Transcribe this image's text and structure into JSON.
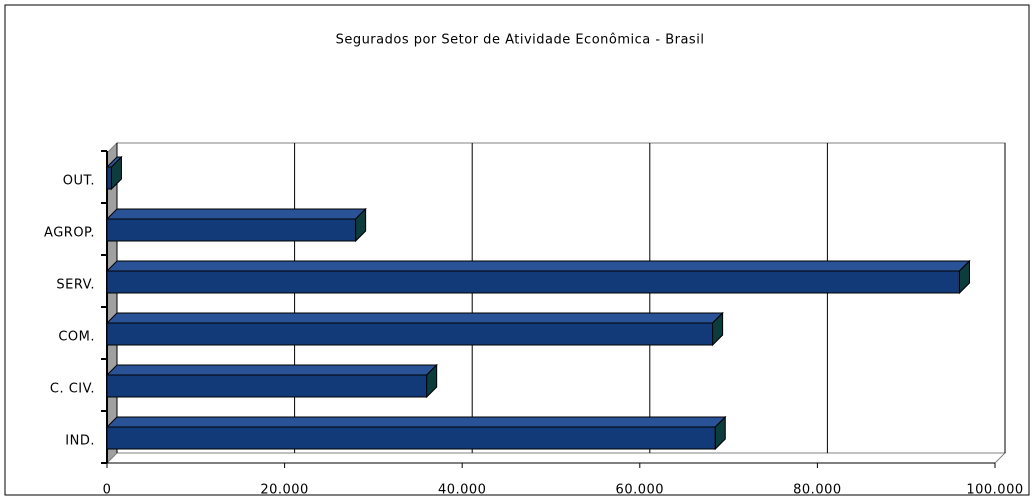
{
  "chart_data": {
    "type": "bar",
    "orientation": "horizontal",
    "title": "Segurados por Setor de Atividade Econômica - Brasil",
    "categories": [
      "IND.",
      "C. CIV.",
      "COM.",
      "SERV.",
      "AGROP.",
      "OUT."
    ],
    "values": [
      68500,
      36000,
      68200,
      96000,
      28000,
      500
    ],
    "color": "#123a78",
    "xlim": [
      0,
      100000
    ],
    "xticks": [
      0,
      {
        "value": 20000,
        "label": "20.000"
      },
      {
        "value": 40000,
        "label": "40.000"
      },
      {
        "value": 60000,
        "label": "60.000"
      },
      {
        "value": 80000,
        "label": "80.000"
      },
      {
        "value": 100000,
        "label": "100.000"
      }
    ],
    "grid": true
  }
}
